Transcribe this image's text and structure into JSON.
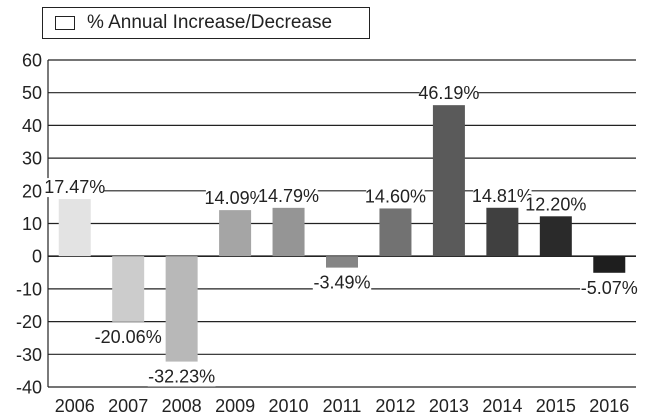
{
  "legend": {
    "label": "% Annual Increase/Decrease"
  },
  "chart_data": {
    "type": "bar",
    "title": "",
    "xlabel": "",
    "ylabel": "",
    "ylim": [
      -40,
      60
    ],
    "yticks": [
      60,
      50,
      40,
      30,
      20,
      10,
      0,
      -10,
      -20,
      -30,
      -40
    ],
    "grid": true,
    "legend_position": "top-left",
    "categories": [
      "2006",
      "2007",
      "2008",
      "2009",
      "2010",
      "2011",
      "2012",
      "2013",
      "2014",
      "2015",
      "2016"
    ],
    "values": [
      17.47,
      -20.06,
      -32.23,
      14.09,
      14.79,
      -3.49,
      14.6,
      46.19,
      14.81,
      12.2,
      -5.07
    ],
    "data_labels": [
      "17.47%",
      "-20.06%",
      "-32.23%",
      "14.09%",
      "14.79%",
      "-3.49%",
      "14.60%",
      "46.19%",
      "14.81%",
      "12.20%",
      "-5.07%"
    ],
    "colors": [
      "#e3e3e3",
      "#cccccc",
      "#b8b8b8",
      "#a5a5a5",
      "#959595",
      "#858585",
      "#727272",
      "#5a5a5a",
      "#404040",
      "#2a2a2a",
      "#1e1e1e"
    ]
  }
}
